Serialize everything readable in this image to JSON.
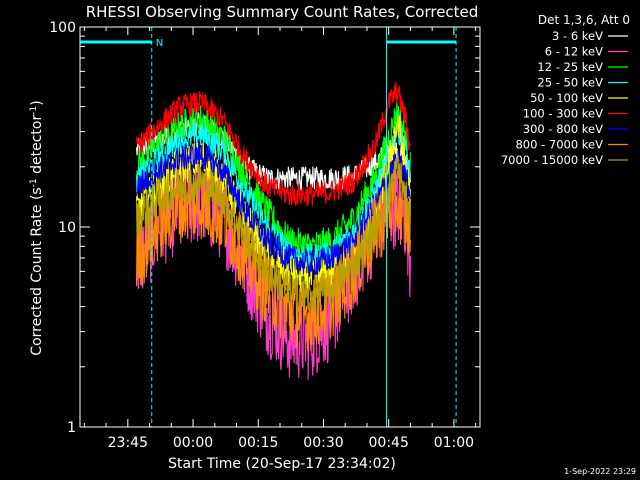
{
  "chart_data": {
    "type": "line",
    "title": "RHESSI Observing Summary Count Rates, Corrected",
    "xlabel": "Start Time (20-Sep-17 23:34:02)",
    "ylabel_main": "Corrected Count Rate (s",
    "ylabel_sup1": "-1",
    "ylabel_mid": " detector",
    "ylabel_sup2": "-1",
    "ylabel_end": ")",
    "yscale": "log",
    "ylim": [
      1,
      100
    ],
    "xlim_minutes": [
      0,
      92
    ],
    "x_ticks": [
      {
        "label": "23:45",
        "minute": 11
      },
      {
        "label": "00:00",
        "minute": 26
      },
      {
        "label": "00:15",
        "minute": 41
      },
      {
        "label": "00:30",
        "minute": 56
      },
      {
        "label": "00:45",
        "minute": 71
      },
      {
        "label": "01:00",
        "minute": 86
      }
    ],
    "y_ticks": [
      {
        "label": "1",
        "value": 1
      },
      {
        "label": "10",
        "value": 10
      },
      {
        "label": "100",
        "value": 100
      }
    ],
    "legend_title": "Det 1,3,6, Att 0",
    "legend_position": "top-right",
    "night_marker": "N",
    "night_intervals": [
      [
        0,
        16.5
      ],
      [
        70.5,
        86.5
      ]
    ],
    "series": [
      {
        "name": "3 - 6 keV",
        "color": "#ffffff",
        "x": [
          13,
          18,
          23,
          28,
          33,
          38,
          43,
          48,
          53,
          58,
          63,
          68,
          71,
          73,
          75,
          76
        ],
        "values": [
          24,
          27,
          30,
          33,
          28,
          20,
          17.5,
          17.5,
          17.5,
          17.5,
          18,
          21,
          24,
          24,
          21,
          19
        ]
      },
      {
        "name": "6 - 12 keV",
        "color": "#ff3cc8",
        "x": [
          13,
          18,
          23,
          28,
          33,
          38,
          43,
          48,
          53,
          58,
          63,
          68,
          71,
          73,
          75,
          76
        ],
        "values": [
          6.5,
          10,
          12.5,
          13.5,
          11,
          6.5,
          3.8,
          2.8,
          2.8,
          3.6,
          6,
          10,
          12.5,
          13,
          11,
          7
        ]
      },
      {
        "name": "12 - 25 keV",
        "color": "#00ff00",
        "x": [
          13,
          18,
          23,
          28,
          33,
          38,
          43,
          48,
          53,
          58,
          63,
          68,
          71,
          73,
          75,
          76
        ],
        "values": [
          20,
          26,
          32,
          35,
          28,
          18,
          12,
          8.5,
          8,
          8.5,
          11,
          18,
          28,
          38,
          28,
          20
        ]
      },
      {
        "name": "25 - 50 keV",
        "color": "#00ffff",
        "x": [
          13,
          18,
          23,
          28,
          33,
          38,
          43,
          48,
          53,
          58,
          63,
          68,
          71,
          73,
          75,
          76
        ],
        "values": [
          17,
          22,
          27,
          29,
          24,
          15,
          10,
          7.5,
          7,
          7.5,
          9.5,
          15,
          22,
          32,
          24,
          18
        ]
      },
      {
        "name": "50 - 100 keV",
        "color": "#ffff00",
        "x": [
          13,
          18,
          23,
          28,
          33,
          38,
          43,
          48,
          53,
          58,
          63,
          68,
          71,
          73,
          75,
          76
        ],
        "values": [
          12,
          16,
          20,
          22,
          18,
          11,
          7.5,
          6,
          5.5,
          6,
          7.5,
          12,
          20,
          34,
          20,
          14
        ]
      },
      {
        "name": "100 - 300 keV",
        "color": "#ff0000",
        "x": [
          13,
          18,
          23,
          28,
          33,
          38,
          43,
          48,
          53,
          58,
          63,
          68,
          71,
          73,
          75,
          76
        ],
        "values": [
          25,
          32,
          40,
          42,
          34,
          22,
          16,
          14.5,
          14.5,
          15,
          17,
          26,
          42,
          48,
          34,
          24
        ]
      },
      {
        "name": "300 - 800 keV",
        "color": "#0000ff",
        "x": [
          13,
          18,
          23,
          28,
          33,
          38,
          43,
          48,
          53,
          58,
          63,
          68,
          71,
          73,
          75,
          76
        ],
        "values": [
          16,
          19,
          22,
          23,
          19,
          12,
          8.5,
          7,
          6.5,
          7,
          8.5,
          13,
          18,
          21,
          18,
          14
        ]
      },
      {
        "name": "800 - 7000 keV",
        "color": "#ff8c00",
        "x": [
          13,
          18,
          23,
          28,
          33,
          38,
          43,
          48,
          53,
          58,
          63,
          68,
          71,
          73,
          75,
          76
        ],
        "values": [
          7,
          10,
          12.5,
          13,
          11,
          7,
          4.8,
          3.8,
          3.6,
          4.2,
          6,
          9.5,
          12,
          13,
          11,
          9
        ]
      },
      {
        "name": "7000 - 15000 keV",
        "color": "#b8a000",
        "x": [
          13,
          18,
          23,
          28,
          33,
          38,
          43,
          48,
          53,
          58,
          63,
          68,
          71,
          73,
          75,
          76
        ],
        "values": [
          11,
          14,
          16,
          17,
          14,
          9,
          6,
          4.8,
          4.5,
          5,
          6.5,
          10,
          15,
          20,
          14,
          10
        ]
      }
    ]
  },
  "timestamp": "1-Sep-2022 23:29"
}
